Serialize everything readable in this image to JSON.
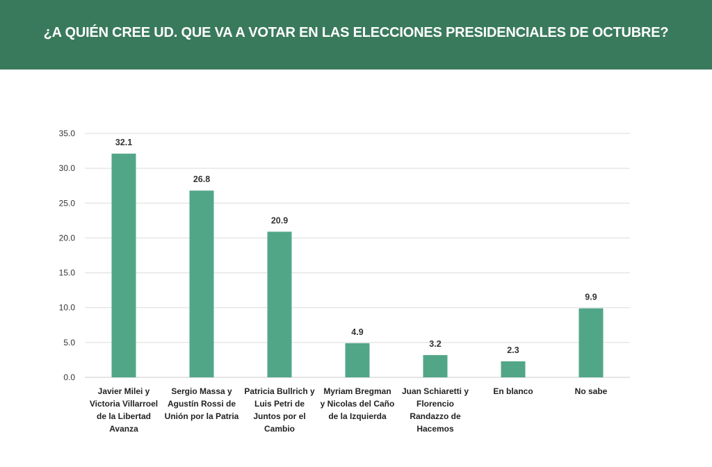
{
  "header": {
    "title": "¿A QUIÉN CREE UD. QUE VA A VOTAR EN LAS ELECCIONES PRESIDENCIALES DE OCTUBRE?",
    "background_color": "#3a7a5c"
  },
  "chart_data": {
    "type": "bar",
    "title": "",
    "xlabel": "",
    "ylabel": "",
    "ylim": [
      0,
      35
    ],
    "yticks": [
      "0.0",
      "5.0",
      "10.0",
      "15.0",
      "20.0",
      "25.0",
      "30.0",
      "35.0"
    ],
    "grid": true,
    "bar_color": "#52a688",
    "categories": [
      [
        "Javier Milei y",
        "Victoria Villarroel",
        "de la Libertad",
        "Avanza"
      ],
      [
        "Sergio Massa y",
        "Agustín Rossi de",
        "Unión por la Patria"
      ],
      [
        "Patricia Bullrich y",
        "Luis Petri de",
        "Juntos por el",
        "Cambio"
      ],
      [
        "Myriam Bregman",
        "y Nicolas del Caño",
        "de la Izquierda"
      ],
      [
        "Juan Schiaretti y",
        "Florencio",
        "Randazzo de",
        "Hacemos"
      ],
      [
        "En blanco"
      ],
      [
        "No sabe"
      ]
    ],
    "values": [
      32.1,
      26.8,
      20.9,
      4.9,
      3.2,
      2.3,
      9.9
    ],
    "value_labels": [
      "32.1",
      "26.8",
      "20.9",
      "4.9",
      "3.2",
      "2.3",
      "9.9"
    ]
  }
}
